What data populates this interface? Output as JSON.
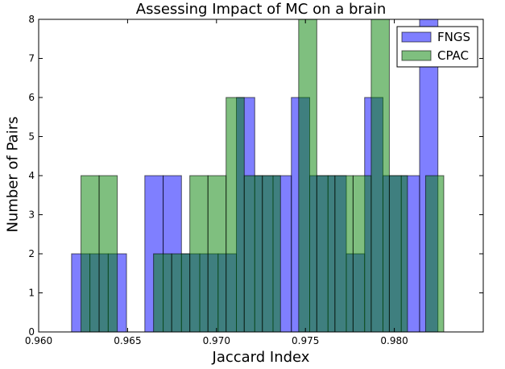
{
  "chart_data": {
    "type": "bar",
    "title": "Assessing Impact of MC on a brain",
    "xlabel": "Jaccard Index",
    "ylabel": "Number of Pairs",
    "xlim": [
      0.96,
      0.985
    ],
    "ylim": [
      0,
      8
    ],
    "xticks": [
      "0.960",
      "0.965",
      "0.970",
      "0.975",
      "0.980"
    ],
    "yticks": [
      "0",
      "1",
      "2",
      "3",
      "4",
      "5",
      "6",
      "7",
      "8"
    ],
    "legend_position": "top-right",
    "grid": false,
    "series": [
      {
        "name": "FNGS",
        "color": "#0000ff",
        "opacity": 0.5,
        "bin_width": 0.00103,
        "bins": [
          {
            "x0": 0.96185,
            "y": 2
          },
          {
            "x0": 0.96288,
            "y": 2
          },
          {
            "x0": 0.96391,
            "y": 2
          },
          {
            "x0": 0.96494,
            "y": 0
          },
          {
            "x0": 0.96597,
            "y": 4
          },
          {
            "x0": 0.967,
            "y": 4
          },
          {
            "x0": 0.96803,
            "y": 2
          },
          {
            "x0": 0.96906,
            "y": 2
          },
          {
            "x0": 0.97009,
            "y": 2
          },
          {
            "x0": 0.97112,
            "y": 6
          },
          {
            "x0": 0.97215,
            "y": 4
          },
          {
            "x0": 0.97318,
            "y": 4
          },
          {
            "x0": 0.97421,
            "y": 6
          },
          {
            "x0": 0.97524,
            "y": 4
          },
          {
            "x0": 0.97627,
            "y": 4
          },
          {
            "x0": 0.9773,
            "y": 2
          },
          {
            "x0": 0.97833,
            "y": 6
          },
          {
            "x0": 0.97936,
            "y": 4
          },
          {
            "x0": 0.98039,
            "y": 4
          },
          {
            "x0": 0.98142,
            "y": 8
          }
        ]
      },
      {
        "name": "CPAC",
        "color": "#008000",
        "opacity": 0.5,
        "bin_width": 0.00102,
        "bins": [
          {
            "x0": 0.96238,
            "y": 4
          },
          {
            "x0": 0.9634,
            "y": 4
          },
          {
            "x0": 0.96442,
            "y": 0
          },
          {
            "x0": 0.96544,
            "y": 0
          },
          {
            "x0": 0.96646,
            "y": 2
          },
          {
            "x0": 0.96748,
            "y": 2
          },
          {
            "x0": 0.9685,
            "y": 4
          },
          {
            "x0": 0.96952,
            "y": 4
          },
          {
            "x0": 0.97054,
            "y": 6
          },
          {
            "x0": 0.97156,
            "y": 4
          },
          {
            "x0": 0.97258,
            "y": 4
          },
          {
            "x0": 0.9736,
            "y": 0
          },
          {
            "x0": 0.97462,
            "y": 8
          },
          {
            "x0": 0.97564,
            "y": 4
          },
          {
            "x0": 0.97666,
            "y": 4
          },
          {
            "x0": 0.97768,
            "y": 4
          },
          {
            "x0": 0.9787,
            "y": 8
          },
          {
            "x0": 0.97972,
            "y": 4
          },
          {
            "x0": 0.98074,
            "y": 0
          },
          {
            "x0": 0.98176,
            "y": 4
          }
        ]
      }
    ]
  }
}
